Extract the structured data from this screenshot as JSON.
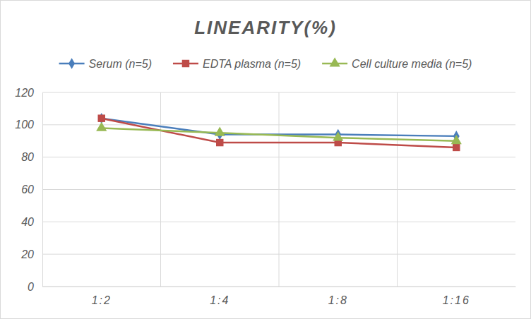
{
  "chart_data": {
    "type": "line",
    "title": "LINEARITY(%)",
    "categories": [
      "1:2",
      "1:4",
      "1:8",
      "1:16"
    ],
    "series": [
      {
        "name": "Serum (n=5)",
        "color": "#4a7ebb",
        "marker": "diamond",
        "values": [
          104,
          94,
          94,
          93
        ]
      },
      {
        "name": "EDTA plasma (n=5)",
        "color": "#be4b48",
        "marker": "square",
        "values": [
          104,
          89,
          89,
          86
        ]
      },
      {
        "name": "Cell culture media (n=5)",
        "color": "#98b954",
        "marker": "triangle",
        "values": [
          98,
          95,
          92,
          90
        ]
      }
    ],
    "ylim": [
      0,
      120
    ],
    "yticks": [
      0,
      20,
      40,
      60,
      80,
      100,
      120
    ],
    "grid": true,
    "legend": "top"
  }
}
